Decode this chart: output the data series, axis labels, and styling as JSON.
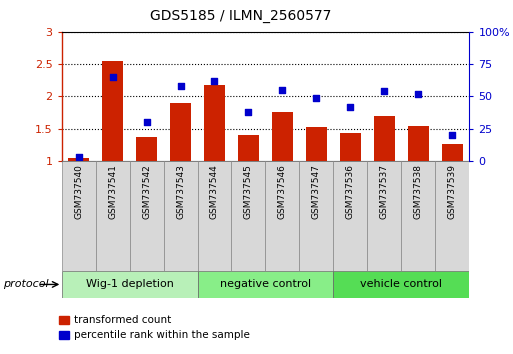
{
  "title": "GDS5185 / ILMN_2560577",
  "categories": [
    "GSM737540",
    "GSM737541",
    "GSM737542",
    "GSM737543",
    "GSM737544",
    "GSM737545",
    "GSM737546",
    "GSM737547",
    "GSM737536",
    "GSM737537",
    "GSM737538",
    "GSM737539"
  ],
  "red_values": [
    1.05,
    2.55,
    1.38,
    1.9,
    2.18,
    1.4,
    1.76,
    1.52,
    1.43,
    1.7,
    1.54,
    1.26
  ],
  "blue_values": [
    3.0,
    65.0,
    30.0,
    58.0,
    62.0,
    38.0,
    55.0,
    49.0,
    42.0,
    54.0,
    52.0,
    20.0
  ],
  "groups": [
    {
      "label": "Wig-1 depletion",
      "start": 0,
      "end": 4,
      "color": "#b8f0b8"
    },
    {
      "label": "negative control",
      "start": 4,
      "end": 8,
      "color": "#88ee88"
    },
    {
      "label": "vehicle control",
      "start": 8,
      "end": 12,
      "color": "#55dd55"
    }
  ],
  "ylim_left": [
    1.0,
    3.0
  ],
  "ylim_right": [
    0,
    100
  ],
  "yticks_left": [
    1.0,
    1.5,
    2.0,
    2.5,
    3.0
  ],
  "ytick_labels_left": [
    "1",
    "1.5",
    "2",
    "2.5",
    "3"
  ],
  "yticks_right": [
    0,
    25,
    50,
    75,
    100
  ],
  "ytick_labels_right": [
    "0",
    "25",
    "50",
    "75",
    "100%"
  ],
  "bar_color": "#cc2200",
  "dot_color": "#0000cc",
  "bar_width": 0.6,
  "tick_color_left": "#cc2200",
  "tick_color_right": "#0000cc",
  "protocol_label": "protocol",
  "legend_red": "transformed count",
  "legend_blue": "percentile rank within the sample",
  "bg_color": "#d8d8d8"
}
